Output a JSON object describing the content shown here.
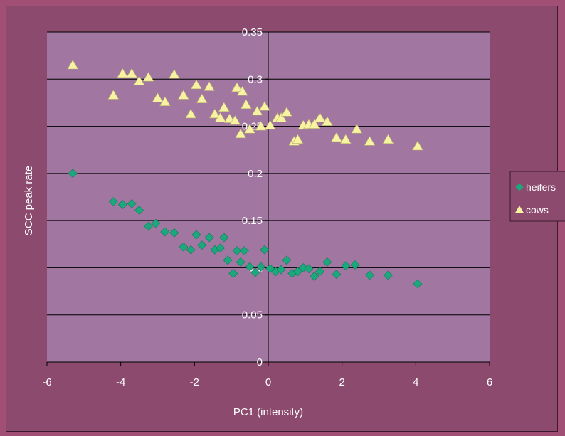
{
  "chart_data": {
    "type": "scatter",
    "title": "",
    "xlabel": "PC1 (intensity)",
    "ylabel": "SCC peak rate",
    "xlim": [
      -6,
      6
    ],
    "ylim": [
      0,
      0.35
    ],
    "x_ticks": [
      "-6",
      "-4",
      "-2",
      "0",
      "2",
      "4",
      "6"
    ],
    "y_ticks": [
      "0",
      "0.05",
      "0.1",
      "0.15",
      "0.2",
      "0.25",
      "0.3",
      "0.35"
    ],
    "grid": "horizontal",
    "legend_position": "right",
    "series": [
      {
        "name": "heifers",
        "marker": "diamond",
        "color": "#1aa87c",
        "points": [
          [
            -5.3,
            0.2
          ],
          [
            -4.2,
            0.17
          ],
          [
            -3.95,
            0.167
          ],
          [
            -3.7,
            0.168
          ],
          [
            -3.5,
            0.161
          ],
          [
            -3.25,
            0.144
          ],
          [
            -3.05,
            0.147
          ],
          [
            -2.8,
            0.138
          ],
          [
            -2.55,
            0.137
          ],
          [
            -2.3,
            0.122
          ],
          [
            -2.1,
            0.119
          ],
          [
            -1.95,
            0.135
          ],
          [
            -1.8,
            0.124
          ],
          [
            -1.6,
            0.132
          ],
          [
            -1.45,
            0.119
          ],
          [
            -1.3,
            0.121
          ],
          [
            -1.2,
            0.132
          ],
          [
            -1.1,
            0.108
          ],
          [
            -0.95,
            0.094
          ],
          [
            -0.85,
            0.118
          ],
          [
            -0.75,
            0.106
          ],
          [
            -0.65,
            0.118
          ],
          [
            -0.5,
            0.101
          ],
          [
            -0.35,
            0.095
          ],
          [
            -0.2,
            0.101
          ],
          [
            -0.1,
            0.119
          ],
          [
            0.05,
            0.099
          ],
          [
            0.2,
            0.096
          ],
          [
            0.35,
            0.098
          ],
          [
            0.5,
            0.108
          ],
          [
            0.65,
            0.094
          ],
          [
            0.8,
            0.096
          ],
          [
            0.95,
            0.1
          ],
          [
            1.1,
            0.099
          ],
          [
            1.25,
            0.091
          ],
          [
            1.4,
            0.096
          ],
          [
            1.6,
            0.106
          ],
          [
            1.85,
            0.093
          ],
          [
            2.1,
            0.102
          ],
          [
            2.35,
            0.103
          ],
          [
            2.75,
            0.092
          ],
          [
            3.25,
            0.092
          ],
          [
            4.05,
            0.083
          ]
        ]
      },
      {
        "name": "cows",
        "marker": "triangle",
        "color": "#f8f3a2",
        "points": [
          [
            -5.3,
            0.315
          ],
          [
            -4.2,
            0.283
          ],
          [
            -3.95,
            0.306
          ],
          [
            -3.7,
            0.306
          ],
          [
            -3.5,
            0.298
          ],
          [
            -3.25,
            0.302
          ],
          [
            -3.0,
            0.28
          ],
          [
            -2.8,
            0.276
          ],
          [
            -2.55,
            0.305
          ],
          [
            -2.3,
            0.283
          ],
          [
            -2.1,
            0.263
          ],
          [
            -1.95,
            0.294
          ],
          [
            -1.8,
            0.279
          ],
          [
            -1.6,
            0.292
          ],
          [
            -1.45,
            0.263
          ],
          [
            -1.3,
            0.259
          ],
          [
            -1.2,
            0.27
          ],
          [
            -1.05,
            0.258
          ],
          [
            -0.9,
            0.256
          ],
          [
            -0.85,
            0.291
          ],
          [
            -0.75,
            0.242
          ],
          [
            -0.7,
            0.287
          ],
          [
            -0.6,
            0.273
          ],
          [
            -0.5,
            0.247
          ],
          [
            -0.3,
            0.266
          ],
          [
            -0.2,
            0.25
          ],
          [
            -0.1,
            0.271
          ],
          [
            0.05,
            0.251
          ],
          [
            0.25,
            0.259
          ],
          [
            0.35,
            0.259
          ],
          [
            0.5,
            0.265
          ],
          [
            0.7,
            0.234
          ],
          [
            0.8,
            0.236
          ],
          [
            0.95,
            0.251
          ],
          [
            1.1,
            0.252
          ],
          [
            1.25,
            0.252
          ],
          [
            1.4,
            0.259
          ],
          [
            1.6,
            0.255
          ],
          [
            1.85,
            0.238
          ],
          [
            2.1,
            0.236
          ],
          [
            2.4,
            0.247
          ],
          [
            2.75,
            0.234
          ],
          [
            3.25,
            0.236
          ],
          [
            4.05,
            0.229
          ]
        ]
      }
    ]
  },
  "colors": {
    "plot_area": "#a176a0",
    "frame": "#8c4a6e",
    "gridline": "#000000",
    "text": "#ffffff"
  }
}
